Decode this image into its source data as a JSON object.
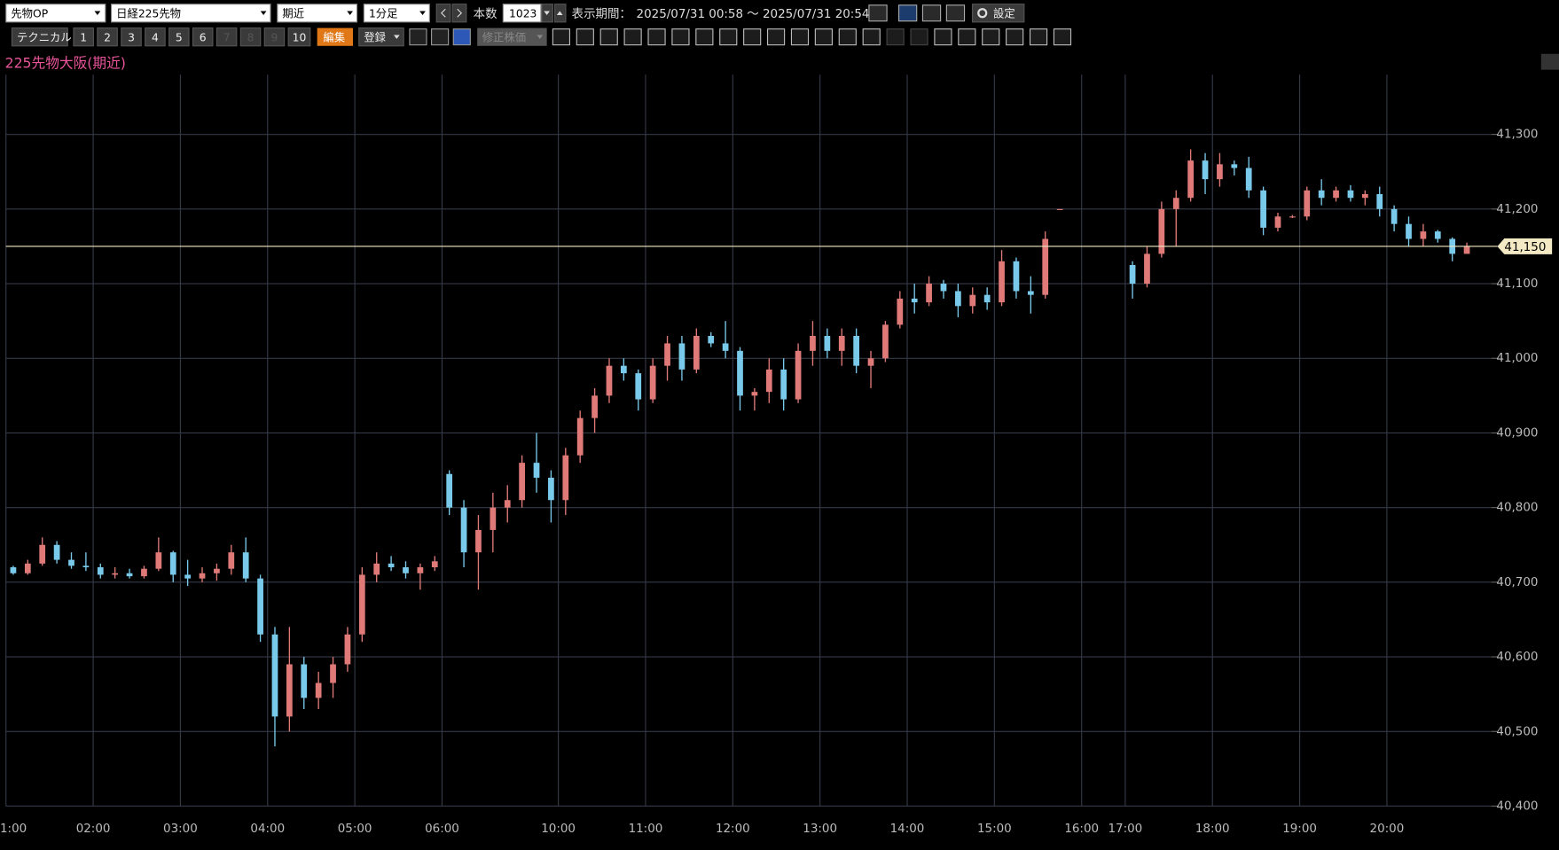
{
  "toolbar": {
    "market": "先物OP",
    "symbol": "日経225先物",
    "contract": "期近",
    "interval": "1分足",
    "count_label": "本数",
    "count": 1023,
    "period_label": "表示期間：",
    "period": "2025/07/31 00:58 ～ 2025/07/31 20:54",
    "settings": "設定",
    "technical": "テクニカル",
    "presets": [
      "1",
      "2",
      "3",
      "4",
      "5",
      "6",
      "7",
      "8",
      "9",
      "10"
    ],
    "edit": "編集",
    "register": "登録",
    "adjusted": "修正株価"
  },
  "chart_data": {
    "type": "candlestick",
    "title": "225先物大阪(期近)",
    "title_color": "#e8559a",
    "categories": [
      "1:00",
      null,
      null,
      null,
      null,
      null,
      "02:00",
      null,
      null,
      null,
      null,
      null,
      "03:00",
      null,
      null,
      null,
      null,
      null,
      "04:00",
      null,
      null,
      null,
      null,
      null,
      "05:00",
      null,
      null,
      null,
      null,
      null,
      "06:00",
      null,
      null,
      null,
      null,
      null,
      null,
      null,
      "10:00",
      null,
      null,
      null,
      null,
      null,
      "11:00",
      null,
      null,
      null,
      null,
      null,
      "12:00",
      null,
      null,
      null,
      null,
      null,
      "13:00",
      null,
      null,
      null,
      null,
      null,
      "14:00",
      null,
      null,
      null,
      null,
      null,
      "15:00",
      null,
      null,
      null,
      null,
      null,
      "16:00",
      null,
      null,
      "17:00",
      null,
      null,
      null,
      null,
      null,
      "18:00",
      null,
      null,
      null,
      null,
      null,
      "19:00",
      null,
      null,
      null,
      null,
      null,
      "20:00",
      null,
      null,
      null,
      null,
      null
    ],
    "open": [
      40720,
      40712,
      40725,
      40750,
      40730,
      40722,
      40720,
      40710,
      40712,
      40708,
      40718,
      40740,
      40710,
      40705,
      40712,
      40718,
      40740,
      40705,
      40630,
      40520,
      40590,
      40545,
      40565,
      40590,
      40630,
      40710,
      40725,
      40720,
      40712,
      40720,
      40845,
      40800,
      40740,
      40770,
      40800,
      40810,
      40860,
      40840,
      40810,
      40870,
      40920,
      40950,
      40990,
      40980,
      40945,
      40990,
      41020,
      40985,
      41030,
      41020,
      41010,
      40950,
      40955,
      40985,
      40945,
      41010,
      41030,
      41010,
      41030,
      40990,
      41000,
      41045,
      41080,
      41075,
      41100,
      41090,
      41070,
      41085,
      41075,
      41130,
      41090,
      41085,
      41200,
      null,
      null,
      null,
      null,
      41125,
      41100,
      41140,
      41200,
      41215,
      41265,
      41240,
      41260,
      41255,
      41225,
      41175,
      41190,
      41190,
      41225,
      41215,
      41225,
      41215,
      41220,
      41200,
      41180,
      41160,
      41170,
      41160,
      41140
    ],
    "high": [
      40722,
      40730,
      40760,
      40755,
      40740,
      40740,
      40725,
      40720,
      40718,
      40722,
      40760,
      40742,
      40730,
      40720,
      40725,
      40750,
      40760,
      40710,
      40640,
      40640,
      40600,
      40580,
      40600,
      40640,
      40720,
      40740,
      40735,
      40728,
      40725,
      40735,
      40850,
      40810,
      40790,
      40820,
      40830,
      40870,
      40900,
      40850,
      40880,
      40930,
      40960,
      41000,
      41000,
      40985,
      41000,
      41030,
      41030,
      41040,
      41035,
      41050,
      41015,
      40960,
      41000,
      41000,
      41020,
      41050,
      41040,
      41040,
      41040,
      41010,
      41050,
      41090,
      41100,
      41110,
      41105,
      41100,
      41095,
      41095,
      41145,
      41135,
      41110,
      41170,
      41200,
      null,
      null,
      null,
      null,
      41130,
      41150,
      41210,
      41225,
      41280,
      41275,
      41275,
      41265,
      41270,
      41230,
      41195,
      41192,
      41230,
      41240,
      41230,
      41232,
      41225,
      41230,
      41205,
      41190,
      41180,
      41172,
      41162,
      41155
    ],
    "low": [
      40710,
      40710,
      40722,
      40725,
      40718,
      40715,
      40705,
      40705,
      40705,
      40705,
      40715,
      40700,
      40695,
      40700,
      40702,
      40710,
      40700,
      40620,
      40480,
      40500,
      40530,
      40530,
      40545,
      40580,
      40620,
      40700,
      40715,
      40705,
      40690,
      40715,
      40790,
      40720,
      40690,
      40740,
      40780,
      40800,
      40820,
      40780,
      40790,
      40860,
      40900,
      40940,
      40970,
      40930,
      40940,
      40970,
      40970,
      40980,
      41015,
      41000,
      40930,
      40930,
      40940,
      40930,
      40940,
      40990,
      41000,
      40990,
      40980,
      40960,
      40995,
      41040,
      41060,
      41070,
      41080,
      41055,
      41060,
      41065,
      41070,
      41080,
      41060,
      41080,
      41200,
      null,
      null,
      null,
      null,
      41080,
      41095,
      41135,
      41150,
      41210,
      41220,
      41230,
      41245,
      41215,
      41165,
      41170,
      41188,
      41185,
      41205,
      41210,
      41210,
      41205,
      41190,
      41170,
      41150,
      41150,
      41155,
      41130,
      41140
    ],
    "close": [
      40712,
      40725,
      40750,
      40730,
      40722,
      40720,
      40710,
      40712,
      40708,
      40718,
      40740,
      40710,
      40705,
      40712,
      40718,
      40740,
      40705,
      40630,
      40520,
      40590,
      40545,
      40565,
      40590,
      40630,
      40710,
      40725,
      40720,
      40712,
      40720,
      40728,
      40800,
      40740,
      40770,
      40800,
      40810,
      40860,
      40840,
      40810,
      40870,
      40920,
      40950,
      40990,
      40980,
      40945,
      40990,
      41020,
      40985,
      41030,
      41020,
      41010,
      40950,
      40955,
      40985,
      40945,
      41010,
      41030,
      41010,
      41030,
      40990,
      41000,
      41045,
      41080,
      41075,
      41100,
      41090,
      41070,
      41085,
      41075,
      41130,
      41090,
      41085,
      41160,
      41200,
      null,
      null,
      null,
      null,
      41100,
      41140,
      41200,
      41215,
      41265,
      41240,
      41260,
      41255,
      41225,
      41175,
      41190,
      41190,
      41225,
      41215,
      41225,
      41215,
      41220,
      41200,
      41180,
      41160,
      41170,
      41160,
      41140,
      41150
    ],
    "up_color": "#e07a78",
    "down_color": "#79c9ea",
    "ylim": [
      40400,
      41380
    ],
    "yticks": [
      {
        "value": 40400,
        "label": "40,400"
      },
      {
        "value": 40500,
        "label": "40,500"
      },
      {
        "value": 40600,
        "label": "40,600"
      },
      {
        "value": 40700,
        "label": "40,700"
      },
      {
        "value": 40800,
        "label": "40,800"
      },
      {
        "value": 40900,
        "label": "40,900"
      },
      {
        "value": 41000,
        "label": "41,000"
      },
      {
        "value": 41100,
        "label": "41,100"
      },
      {
        "value": 41200,
        "label": "41,200"
      },
      {
        "value": 41300,
        "label": "41,300"
      }
    ],
    "grid": true,
    "grid_color": "#353a48",
    "current_price": {
      "value": 41150,
      "label": "41,150"
    },
    "current_price_color": "#f3e9c4"
  }
}
